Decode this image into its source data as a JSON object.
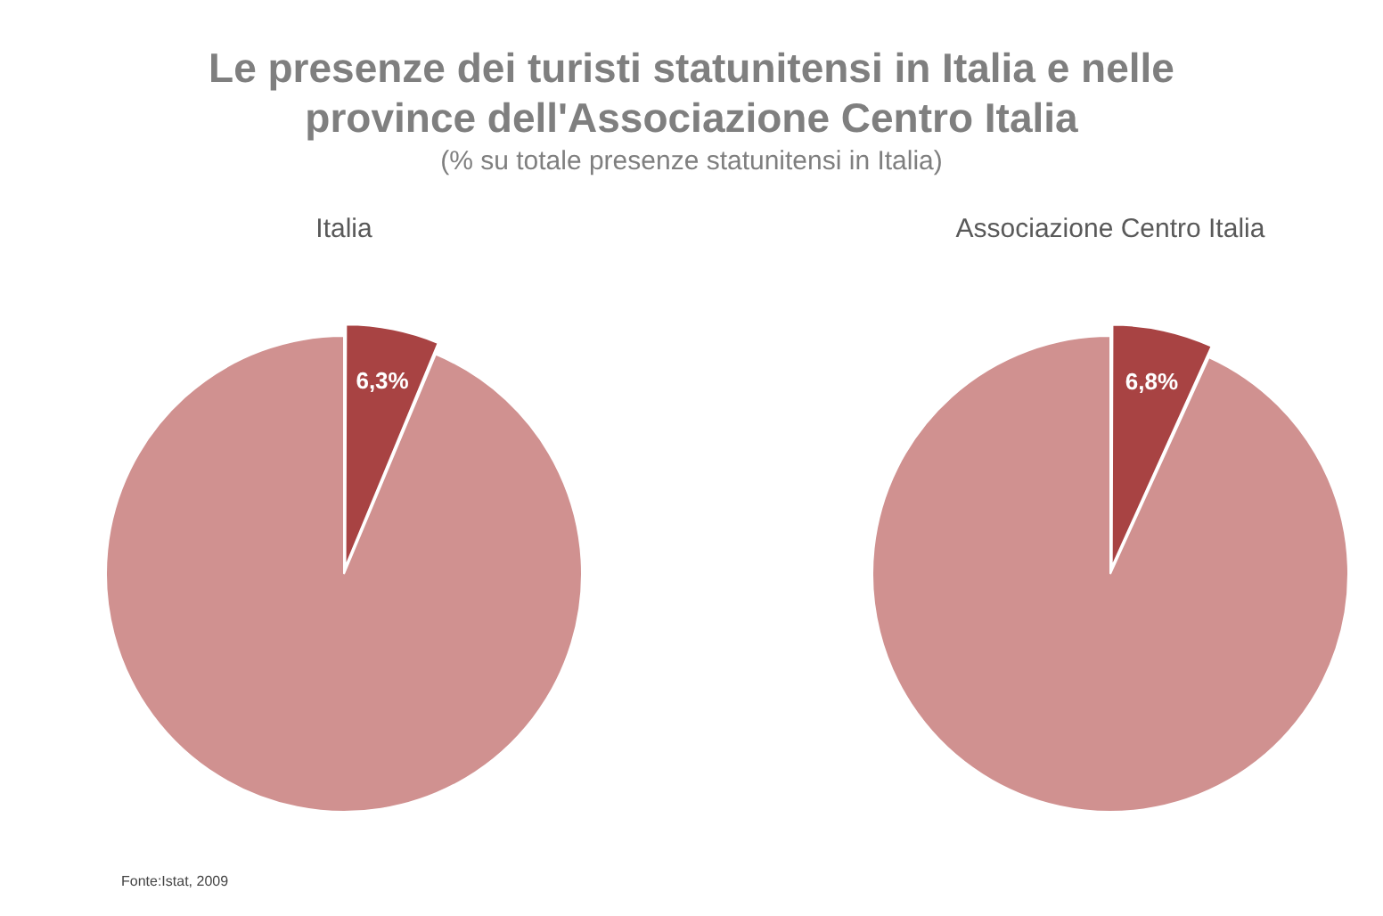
{
  "chart_data": [
    {
      "type": "other",
      "title": "Le presenze dei turisti statunitensi in Italia e nelle province dell'Associazione Centro Italia",
      "subtitle": "(% su totale presenze statunitensi in Italia)",
      "annotations": [
        "Fonte:Istat, 2009"
      ]
    },
    {
      "type": "pie",
      "title": "Italia",
      "categories": [
        null,
        null
      ],
      "values": [
        6.3,
        93.7
      ],
      "colors": [
        "#a84343",
        "#d09190"
      ],
      "value_labels": [
        "6,3%",
        null
      ]
    },
    {
      "type": "pie",
      "title": "Associazione Centro Italia",
      "categories": [
        null,
        null
      ],
      "values": [
        6.8,
        93.2
      ],
      "colors": [
        "#a84343",
        "#d09190"
      ],
      "value_labels": [
        "6,8%",
        null
      ]
    }
  ]
}
